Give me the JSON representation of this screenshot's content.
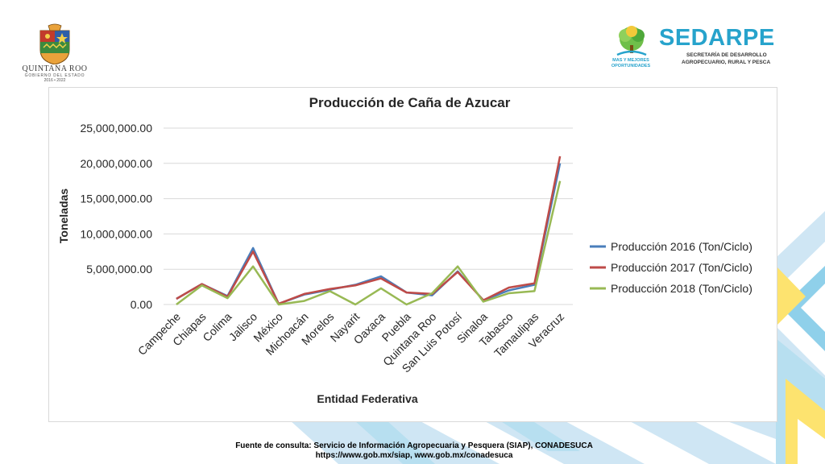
{
  "header": {
    "left_logo": {
      "name": "QUINTANA ROO",
      "subtitle": "GOBIERNO DEL ESTADO",
      "years": "2016 • 2022"
    },
    "right_logo": {
      "brand": "SEDARPE",
      "line1": "SECRETARÍA DE DESARROLLO",
      "line2": "AGROPECUARIO, RURAL Y PESCA",
      "tagline1": "MAS Y MEJORES",
      "tagline2": "OPORTUNIDADES"
    }
  },
  "footer": {
    "source_line": "Fuente de consulta: Servicio de Información Agropecuaria y Pesquera (SIAP), CONADESUCA",
    "links_line": "https://www.gob.mx/siap, www.gob.mx/conadesuca"
  },
  "colors": {
    "series_2016": "#4a7ebb",
    "series_2017": "#be4b48",
    "series_2018": "#98b954",
    "brand": "#27a3cc"
  },
  "chart_data": {
    "type": "line",
    "title": "Producción de Caña de Azucar",
    "xlabel": "Entidad Federativa",
    "ylabel": "Toneladas",
    "ylim": [
      0,
      25000000
    ],
    "y_ticks": [
      0,
      5000000,
      10000000,
      15000000,
      20000000,
      25000000
    ],
    "y_tick_labels": [
      "0.00",
      "5,000,000.00",
      "10,000,000.00",
      "15,000,000.00",
      "20,000,000.00",
      "25,000,000.00"
    ],
    "grid": true,
    "legend_position": "right",
    "categories": [
      "Campeche",
      "Chiapas",
      "Colima",
      "Jalisco",
      "México",
      "Michoacán",
      "Morelos",
      "Nayarit",
      "Oaxaca",
      "Puebla",
      "Quintana Roo",
      "San Luis Potosí",
      "Sinaloa",
      "Tabasco",
      "Tamaulipas",
      "Veracruz"
    ],
    "series": [
      {
        "name": "Producción 2016 (Ton/Ciclo)",
        "color": "#4a7ebb",
        "values": [
          800000,
          2900000,
          1200000,
          8000000,
          100000,
          1400000,
          2100000,
          2800000,
          4000000,
          1700000,
          1300000,
          4700000,
          600000,
          2000000,
          2800000,
          20000000
        ]
      },
      {
        "name": "Producción 2017 (Ton/Ciclo)",
        "color": "#be4b48",
        "values": [
          800000,
          2900000,
          1100000,
          7500000,
          100000,
          1500000,
          2200000,
          2700000,
          3700000,
          1700000,
          1500000,
          4600000,
          600000,
          2400000,
          3000000,
          21000000
        ]
      },
      {
        "name": "Producción 2018 (Ton/Ciclo)",
        "color": "#98b954",
        "values": [
          0,
          2700000,
          900000,
          5400000,
          0,
          500000,
          1900000,
          0,
          2300000,
          0,
          1600000,
          5400000,
          400000,
          1600000,
          1900000,
          17500000
        ]
      }
    ]
  }
}
